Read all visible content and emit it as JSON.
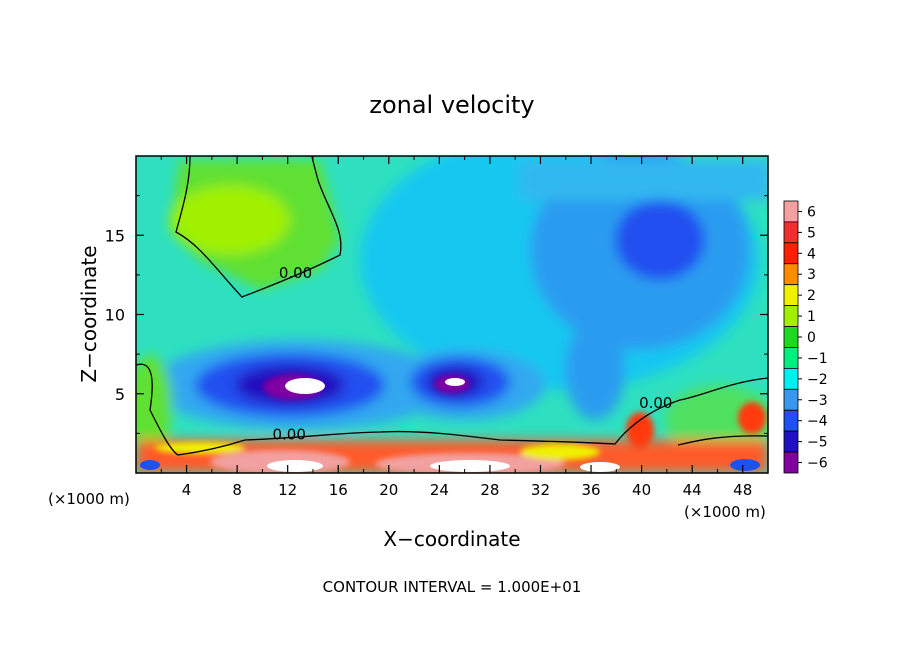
{
  "chart_data": {
    "type": "heatmap",
    "title": "zonal velocity",
    "xlabel": "X−coordinate",
    "ylabel": "Z−coordinate",
    "x_unit_left": "(×1000 m)",
    "x_unit_right": "(×1000 m)",
    "footer": "CONTOUR INTERVAL = 1.000E+01",
    "xlim": [
      0,
      50
    ],
    "ylim": [
      0,
      20
    ],
    "x_ticks": [
      4,
      8,
      12,
      16,
      20,
      24,
      28,
      32,
      36,
      40,
      44,
      48
    ],
    "x_tick_labels": [
      "4",
      "8",
      "12",
      "16",
      "20",
      "24",
      "28",
      "32",
      "36",
      "40",
      "44",
      "48"
    ],
    "y_ticks": [
      5,
      10,
      15
    ],
    "y_tick_labels": [
      "5",
      "10",
      "15"
    ],
    "contour_labels": [
      {
        "text": "0.00",
        "x": 11.3,
        "y": 12.3
      },
      {
        "text": "0.00",
        "x": 10.8,
        "y": 2.1
      },
      {
        "text": "0.00",
        "x": 39.8,
        "y": 4.1
      }
    ],
    "colorbar": {
      "levels": [
        6,
        5,
        4,
        3,
        2,
        1,
        0,
        -1,
        -2,
        -3,
        -4,
        -5,
        -6
      ],
      "labels": [
        "6",
        "5",
        "4",
        "3",
        "2",
        "1",
        "0",
        "−1",
        "−2",
        "−3",
        "−4",
        "−5",
        "−6"
      ],
      "colors": [
        "#f2a0a0",
        "#f03030",
        "#ff2000",
        "#ff8c00",
        "#f0f000",
        "#a0f000",
        "#20d820",
        "#00f080",
        "#00f0f0",
        "#3898f0",
        "#2050f0",
        "#2010c0",
        "#8000a0"
      ]
    },
    "features": [
      {
        "name": "positive-upper-left",
        "x": 9.5,
        "y": 15.5,
        "value": 1.0
      },
      {
        "name": "negative-upper-right",
        "x": 42,
        "y": 14,
        "value": -4.5
      },
      {
        "name": "strong-negative-core-left",
        "x": 13,
        "y": 5.6,
        "value": -6
      },
      {
        "name": "strong-negative-core-right",
        "x": 25,
        "y": 5.8,
        "value": -6
      },
      {
        "name": "positive-surface-layer",
        "x": 25,
        "y": 0.8,
        "value": 6
      }
    ]
  }
}
